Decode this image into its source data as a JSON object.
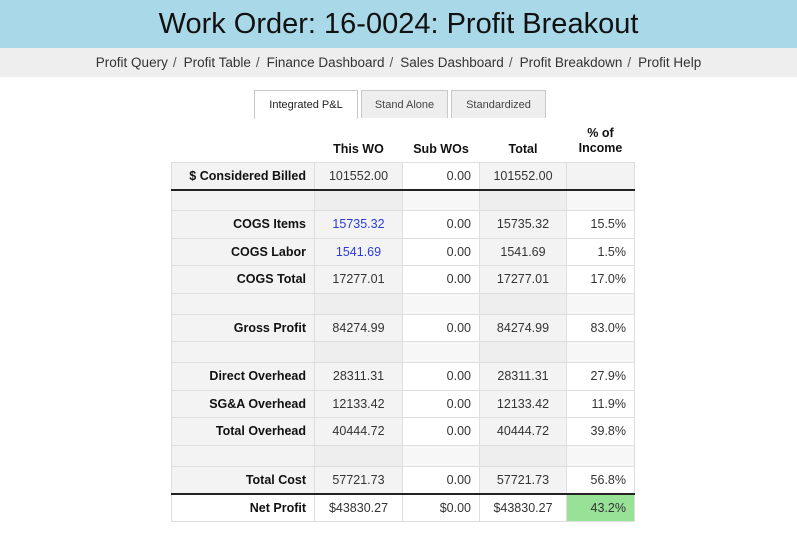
{
  "header": {
    "title": "Work Order: 16-0024: Profit Breakout"
  },
  "nav": {
    "items": [
      {
        "label": "Profit Query"
      },
      {
        "label": "Profit Table"
      },
      {
        "label": "Finance Dashboard"
      },
      {
        "label": "Sales Dashboard"
      },
      {
        "label": "Profit Breakdown"
      },
      {
        "label": "Profit Help"
      }
    ],
    "separator": "/"
  },
  "tabs": [
    {
      "label": "Integrated P&L",
      "active": true
    },
    {
      "label": "Stand Alone",
      "active": false
    },
    {
      "label": "Standardized",
      "active": false
    }
  ],
  "table": {
    "columns": {
      "this_wo": "This WO",
      "sub_wos": "Sub WOs",
      "total": "Total",
      "pct_line1": "% of",
      "pct_line2": "Income"
    },
    "rows": {
      "considered_billed": {
        "label": "$ Considered Billed",
        "this_wo": "101552.00",
        "sub_wos": "0.00",
        "total": "101552.00",
        "pct": ""
      },
      "cogs_items": {
        "label": "COGS Items",
        "this_wo": "15735.32",
        "sub_wos": "0.00",
        "total": "15735.32",
        "pct": "15.5%"
      },
      "cogs_labor": {
        "label": "COGS Labor",
        "this_wo": "1541.69",
        "sub_wos": "0.00",
        "total": "1541.69",
        "pct": "1.5%"
      },
      "cogs_total": {
        "label": "COGS Total",
        "this_wo": "17277.01",
        "sub_wos": "0.00",
        "total": "17277.01",
        "pct": "17.0%"
      },
      "gross_profit": {
        "label": "Gross Profit",
        "this_wo": "84274.99",
        "sub_wos": "0.00",
        "total": "84274.99",
        "pct": "83.0%"
      },
      "direct_overhead": {
        "label": "Direct Overhead",
        "this_wo": "28311.31",
        "sub_wos": "0.00",
        "total": "28311.31",
        "pct": "27.9%"
      },
      "sga_overhead": {
        "label": "SG&A Overhead",
        "this_wo": "12133.42",
        "sub_wos": "0.00",
        "total": "12133.42",
        "pct": "11.9%"
      },
      "total_overhead": {
        "label": "Total Overhead",
        "this_wo": "40444.72",
        "sub_wos": "0.00",
        "total": "40444.72",
        "pct": "39.8%"
      },
      "total_cost": {
        "label": "Total Cost",
        "this_wo": "57721.73",
        "sub_wos": "0.00",
        "total": "57721.73",
        "pct": "56.8%"
      },
      "net_profit": {
        "label": "Net Profit",
        "this_wo": "$43830.27",
        "sub_wos": "$0.00",
        "total": "$43830.27",
        "pct": "43.2%"
      }
    }
  },
  "colors": {
    "title_bar": "#a9d8e9",
    "nav_bar": "#eeeeee",
    "link": "#2a3bd6",
    "positive_highlight": "#98e298"
  }
}
